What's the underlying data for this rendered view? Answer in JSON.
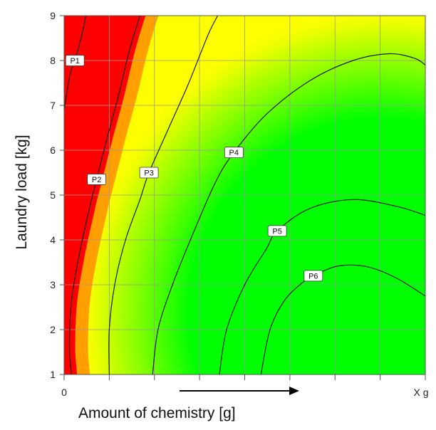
{
  "chart_data": {
    "type": "heatmap",
    "title": "",
    "xlabel": "Amount of chemistry [g]",
    "ylabel": "Laundry load [kg]",
    "x_tick_labels": [
      {
        "value": 0,
        "label": "0"
      },
      {
        "value": 1,
        "label": "X g"
      }
    ],
    "xlim": [
      0,
      1
    ],
    "ylim": [
      1,
      9
    ],
    "y_ticks": [
      1,
      2,
      3,
      4,
      5,
      6,
      7,
      8,
      9
    ],
    "grid": true,
    "color_scale": [
      "#ff0000",
      "#ffff00",
      "#00ff00"
    ],
    "x_direction_arrow": true,
    "contours": [
      {
        "label": "P1",
        "label_at": {
          "x": 0.03,
          "y": 8.0
        },
        "points": [
          [
            0.0,
            6.9
          ],
          [
            0.01,
            7.4
          ],
          [
            0.02,
            7.8
          ],
          [
            0.03,
            8.0
          ],
          [
            0.05,
            8.6
          ],
          [
            0.06,
            9.0
          ]
        ]
      },
      {
        "label": "P2",
        "label_at": {
          "x": 0.09,
          "y": 5.35
        },
        "points": [
          [
            0.02,
            1.0
          ],
          [
            0.015,
            1.6
          ],
          [
            0.02,
            2.6
          ],
          [
            0.04,
            3.6
          ],
          [
            0.07,
            4.7
          ],
          [
            0.09,
            5.35
          ],
          [
            0.12,
            6.3
          ],
          [
            0.15,
            7.2
          ],
          [
            0.18,
            8.2
          ],
          [
            0.21,
            9.0
          ]
        ]
      },
      {
        "label": "P3",
        "label_at": {
          "x": 0.235,
          "y": 5.5
        },
        "points": [
          [
            0.125,
            1.0
          ],
          [
            0.125,
            2.0
          ],
          [
            0.14,
            3.0
          ],
          [
            0.17,
            4.0
          ],
          [
            0.21,
            4.9
          ],
          [
            0.235,
            5.5
          ],
          [
            0.29,
            6.5
          ],
          [
            0.34,
            7.4
          ],
          [
            0.37,
            8.0
          ],
          [
            0.4,
            8.6
          ],
          [
            0.425,
            9.0
          ]
        ]
      },
      {
        "label": "P4",
        "label_at": {
          "x": 0.47,
          "y": 5.95
        },
        "points": [
          [
            0.245,
            1.0
          ],
          [
            0.26,
            2.0
          ],
          [
            0.3,
            3.0
          ],
          [
            0.36,
            4.2
          ],
          [
            0.42,
            5.3
          ],
          [
            0.47,
            5.95
          ],
          [
            0.56,
            6.8
          ],
          [
            0.68,
            7.55
          ],
          [
            0.8,
            8.0
          ],
          [
            0.9,
            8.15
          ],
          [
            0.97,
            8.05
          ],
          [
            1.0,
            7.9
          ]
        ]
      },
      {
        "label": "P5",
        "label_at": {
          "x": 0.59,
          "y": 4.2
        },
        "points": [
          [
            0.43,
            1.0
          ],
          [
            0.45,
            2.0
          ],
          [
            0.5,
            3.0
          ],
          [
            0.56,
            3.8
          ],
          [
            0.59,
            4.2
          ],
          [
            0.68,
            4.7
          ],
          [
            0.8,
            4.9
          ],
          [
            0.92,
            4.75
          ],
          [
            1.0,
            4.55
          ]
        ]
      },
      {
        "label": "P6",
        "label_at": {
          "x": 0.69,
          "y": 3.2
        },
        "points": [
          [
            0.545,
            1.0
          ],
          [
            0.57,
            2.0
          ],
          [
            0.61,
            2.65
          ],
          [
            0.66,
            3.05
          ],
          [
            0.69,
            3.2
          ],
          [
            0.76,
            3.42
          ],
          [
            0.84,
            3.4
          ],
          [
            0.92,
            3.15
          ],
          [
            1.0,
            2.75
          ]
        ]
      }
    ]
  }
}
